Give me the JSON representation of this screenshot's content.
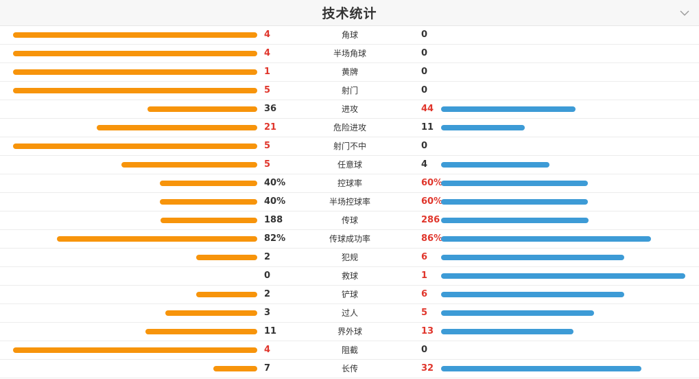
{
  "header": {
    "title": "技术统计",
    "collapse_icon": "chevron-down-icon"
  },
  "colors": {
    "home_bar": "#f7940b",
    "away_bar": "#3d9bd6",
    "highlight": "#e0362c",
    "text": "#333333"
  },
  "stats": [
    {
      "label": "角球",
      "home": "4",
      "away": "0",
      "home_fill": 1.0,
      "away_fill": 0.0,
      "winner": "home"
    },
    {
      "label": "半场角球",
      "home": "4",
      "away": "0",
      "home_fill": 1.0,
      "away_fill": 0.0,
      "winner": "home"
    },
    {
      "label": "黄牌",
      "home": "1",
      "away": "0",
      "home_fill": 1.0,
      "away_fill": 0.0,
      "winner": "home"
    },
    {
      "label": "射门",
      "home": "5",
      "away": "0",
      "home_fill": 1.0,
      "away_fill": 0.0,
      "winner": "home"
    },
    {
      "label": "进攻",
      "home": "36",
      "away": "44",
      "home_fill": 0.45,
      "away_fill": 0.55,
      "winner": "away"
    },
    {
      "label": "危险进攻",
      "home": "21",
      "away": "11",
      "home_fill": 0.656,
      "away_fill": 0.344,
      "winner": "home"
    },
    {
      "label": "射门不中",
      "home": "5",
      "away": "0",
      "home_fill": 1.0,
      "away_fill": 0.0,
      "winner": "home"
    },
    {
      "label": "任意球",
      "home": "5",
      "away": "4",
      "home_fill": 0.556,
      "away_fill": 0.444,
      "winner": "home"
    },
    {
      "label": "控球率",
      "home": "40%",
      "away": "60%",
      "home_fill": 0.4,
      "away_fill": 0.6,
      "winner": "away"
    },
    {
      "label": "半场控球率",
      "home": "40%",
      "away": "60%",
      "home_fill": 0.4,
      "away_fill": 0.6,
      "winner": "away"
    },
    {
      "label": "传球",
      "home": "188",
      "away": "286",
      "home_fill": 0.397,
      "away_fill": 0.603,
      "winner": "away"
    },
    {
      "label": "传球成功率",
      "home": "82%",
      "away": "86%",
      "home_fill": 0.82,
      "away_fill": 0.86,
      "winner": "away"
    },
    {
      "label": "犯规",
      "home": "2",
      "away": "6",
      "home_fill": 0.25,
      "away_fill": 0.75,
      "winner": "away"
    },
    {
      "label": "救球",
      "home": "0",
      "away": "1",
      "home_fill": 0.0,
      "away_fill": 1.0,
      "winner": "away"
    },
    {
      "label": "铲球",
      "home": "2",
      "away": "6",
      "home_fill": 0.25,
      "away_fill": 0.75,
      "winner": "away"
    },
    {
      "label": "过人",
      "home": "3",
      "away": "5",
      "home_fill": 0.375,
      "away_fill": 0.625,
      "winner": "away"
    },
    {
      "label": "界外球",
      "home": "11",
      "away": "13",
      "home_fill": 0.458,
      "away_fill": 0.542,
      "winner": "away"
    },
    {
      "label": "阻截",
      "home": "4",
      "away": "0",
      "home_fill": 1.0,
      "away_fill": 0.0,
      "winner": "home"
    },
    {
      "label": "长传",
      "home": "7",
      "away": "32",
      "home_fill": 0.18,
      "away_fill": 0.82,
      "winner": "away"
    }
  ]
}
